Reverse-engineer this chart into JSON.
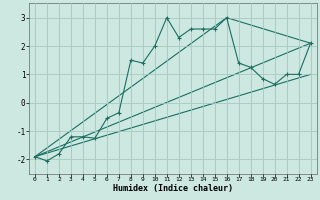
{
  "title": "",
  "xlabel": "Humidex (Indice chaleur)",
  "bg_color": "#cce8e0",
  "line_color": "#1a6e64",
  "grid_color": "#aaccc4",
  "grid_major_color": "#cc9999",
  "xlim": [
    -0.5,
    23.5
  ],
  "ylim": [
    -2.5,
    3.5
  ],
  "xticks": [
    0,
    1,
    2,
    3,
    4,
    5,
    6,
    7,
    8,
    9,
    10,
    11,
    12,
    13,
    14,
    15,
    16,
    17,
    18,
    19,
    20,
    21,
    22,
    23
  ],
  "yticks": [
    -2,
    -1,
    0,
    1,
    2,
    3
  ],
  "series1_x": [
    0,
    1,
    2,
    3,
    4,
    5,
    6,
    7,
    8,
    9,
    10,
    11,
    12,
    13,
    14,
    15,
    16,
    17,
    18,
    19,
    20,
    21,
    22,
    23
  ],
  "series1_y": [
    -1.9,
    -2.05,
    -1.8,
    -1.2,
    -1.2,
    -1.25,
    -0.55,
    -0.35,
    1.5,
    1.4,
    2.0,
    3.0,
    2.3,
    2.6,
    2.6,
    2.6,
    3.0,
    1.4,
    1.25,
    0.85,
    0.65,
    1.0,
    1.0,
    2.1
  ],
  "series2_x": [
    0,
    23
  ],
  "series2_y": [
    -1.9,
    2.1
  ],
  "series3_x": [
    0,
    16,
    23
  ],
  "series3_y": [
    -1.9,
    3.0,
    2.1
  ],
  "series4_x": [
    0,
    23
  ],
  "series4_y": [
    -1.9,
    1.0
  ]
}
